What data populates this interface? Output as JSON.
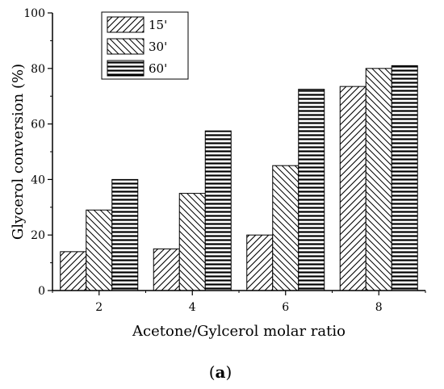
{
  "chart_data": {
    "type": "bar",
    "xlabel": "Acetone/Gylcerol molar ratio",
    "ylabel": "Glycerol conversion (%)",
    "ylim": [
      0,
      100
    ],
    "yticks": [
      0,
      20,
      40,
      60,
      80,
      100
    ],
    "categories": [
      "2",
      "4",
      "6",
      "8"
    ],
    "series": [
      {
        "name": "15'",
        "values": [
          14,
          15,
          20,
          73.5
        ],
        "pattern": "diagonal-up"
      },
      {
        "name": "30'",
        "values": [
          29,
          35,
          45,
          80
        ],
        "pattern": "diagonal-down"
      },
      {
        "name": "60'",
        "values": [
          40,
          57.5,
          72.5,
          81
        ],
        "pattern": "horizontal"
      }
    ],
    "legend_position": "top-left",
    "grid": false
  },
  "panel_label": {
    "open": "(",
    "letter": "a",
    "close": ")"
  }
}
